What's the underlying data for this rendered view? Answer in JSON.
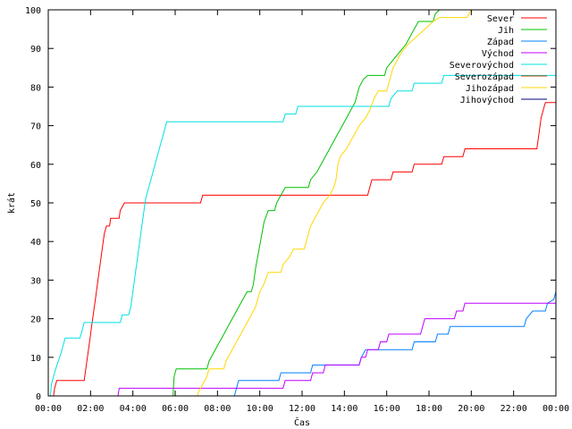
{
  "chart_data": {
    "type": "line",
    "title": "",
    "xlabel": "Čas",
    "ylabel": "krát",
    "xlim": [
      0,
      24
    ],
    "ylim": [
      0,
      100
    ],
    "grid": false,
    "legend_position": "top-right",
    "x_ticks": [
      {
        "value": 0,
        "label": "00:00"
      },
      {
        "value": 2,
        "label": "02:00"
      },
      {
        "value": 4,
        "label": "04:00"
      },
      {
        "value": 6,
        "label": "06:00"
      },
      {
        "value": 8,
        "label": "08:00"
      },
      {
        "value": 10,
        "label": "10:00"
      },
      {
        "value": 12,
        "label": "12:00"
      },
      {
        "value": 14,
        "label": "14:00"
      },
      {
        "value": 16,
        "label": "16:00"
      },
      {
        "value": 18,
        "label": "18:00"
      },
      {
        "value": 20,
        "label": "20:00"
      },
      {
        "value": 22,
        "label": "22:00"
      },
      {
        "value": 24,
        "label": "00:00"
      }
    ],
    "y_ticks": [
      0,
      10,
      20,
      30,
      40,
      50,
      60,
      70,
      80,
      90,
      100
    ],
    "series": [
      {
        "name": "Sever",
        "color": "#ff0000",
        "points": [
          [
            0.25,
            0
          ],
          [
            0.3,
            2
          ],
          [
            0.4,
            4
          ],
          [
            1.7,
            4
          ],
          [
            1.75,
            6
          ],
          [
            1.85,
            10
          ],
          [
            1.95,
            14
          ],
          [
            2.05,
            18
          ],
          [
            2.15,
            22
          ],
          [
            2.25,
            26
          ],
          [
            2.35,
            30
          ],
          [
            2.45,
            34
          ],
          [
            2.55,
            38
          ],
          [
            2.65,
            42
          ],
          [
            2.75,
            44
          ],
          [
            2.9,
            44
          ],
          [
            2.95,
            46
          ],
          [
            3.35,
            46
          ],
          [
            3.4,
            48
          ],
          [
            3.6,
            50
          ],
          [
            7.2,
            50
          ],
          [
            7.3,
            52
          ],
          [
            15.1,
            52
          ],
          [
            15.2,
            54
          ],
          [
            15.3,
            56
          ],
          [
            16.2,
            56
          ],
          [
            16.3,
            58
          ],
          [
            17.2,
            58
          ],
          [
            17.3,
            60
          ],
          [
            18.6,
            60
          ],
          [
            18.7,
            62
          ],
          [
            19.6,
            62
          ],
          [
            19.7,
            64
          ],
          [
            23.1,
            64
          ],
          [
            23.2,
            68
          ],
          [
            23.3,
            72
          ],
          [
            23.4,
            74
          ],
          [
            23.5,
            76
          ],
          [
            24,
            76
          ]
        ]
      },
      {
        "name": "Jih",
        "color": "#00c000",
        "points": [
          [
            5.9,
            0
          ],
          [
            5.95,
            5
          ],
          [
            6.05,
            7
          ],
          [
            7.5,
            7
          ],
          [
            7.6,
            9
          ],
          [
            7.8,
            11
          ],
          [
            8.0,
            13
          ],
          [
            8.2,
            15
          ],
          [
            8.4,
            17
          ],
          [
            8.6,
            19
          ],
          [
            8.8,
            21
          ],
          [
            9.0,
            23
          ],
          [
            9.2,
            25
          ],
          [
            9.4,
            27
          ],
          [
            9.6,
            27
          ],
          [
            9.7,
            29
          ],
          [
            9.8,
            33
          ],
          [
            10.0,
            39
          ],
          [
            10.2,
            45
          ],
          [
            10.4,
            48
          ],
          [
            10.7,
            48
          ],
          [
            10.8,
            50
          ],
          [
            11.0,
            52
          ],
          [
            11.2,
            54
          ],
          [
            12.3,
            54
          ],
          [
            12.4,
            56
          ],
          [
            12.7,
            58
          ],
          [
            12.9,
            60
          ],
          [
            13.1,
            62
          ],
          [
            13.3,
            64
          ],
          [
            13.5,
            66
          ],
          [
            13.7,
            68
          ],
          [
            13.9,
            70
          ],
          [
            14.1,
            72
          ],
          [
            14.3,
            74
          ],
          [
            14.5,
            76
          ],
          [
            14.7,
            80
          ],
          [
            14.9,
            82
          ],
          [
            15.1,
            83
          ],
          [
            15.9,
            83
          ],
          [
            16.0,
            85
          ],
          [
            16.3,
            87
          ],
          [
            16.6,
            89
          ],
          [
            16.9,
            91
          ],
          [
            17.1,
            93
          ],
          [
            17.3,
            95
          ],
          [
            17.5,
            97
          ],
          [
            18.2,
            97
          ],
          [
            18.3,
            99
          ],
          [
            18.5,
            100
          ]
        ]
      },
      {
        "name": "Západ",
        "color": "#0080ff",
        "points": [
          [
            8.8,
            0
          ],
          [
            8.9,
            2
          ],
          [
            9.0,
            4
          ],
          [
            10.9,
            4
          ],
          [
            11.0,
            6
          ],
          [
            12.4,
            6
          ],
          [
            12.5,
            8
          ],
          [
            14.7,
            8
          ],
          [
            14.8,
            10
          ],
          [
            15.0,
            12
          ],
          [
            17.2,
            12
          ],
          [
            17.3,
            14
          ],
          [
            18.3,
            14
          ],
          [
            18.4,
            16
          ],
          [
            18.9,
            16
          ],
          [
            19.0,
            18
          ],
          [
            22.5,
            18
          ],
          [
            22.6,
            20
          ],
          [
            22.9,
            22
          ],
          [
            23.5,
            22
          ],
          [
            23.6,
            24
          ],
          [
            23.9,
            25
          ],
          [
            24,
            27
          ]
        ]
      },
      {
        "name": "Východ",
        "color": "#c000ff",
        "points": [
          [
            3.3,
            0
          ],
          [
            3.35,
            2
          ],
          [
            11.1,
            2
          ],
          [
            11.2,
            4
          ],
          [
            12.4,
            4
          ],
          [
            12.5,
            6
          ],
          [
            13.0,
            6
          ],
          [
            13.1,
            8
          ],
          [
            14.7,
            8
          ],
          [
            14.8,
            10
          ],
          [
            15.0,
            10
          ],
          [
            15.1,
            12
          ],
          [
            15.6,
            12
          ],
          [
            15.7,
            14
          ],
          [
            16.0,
            14
          ],
          [
            16.1,
            16
          ],
          [
            17.6,
            16
          ],
          [
            17.7,
            18
          ],
          [
            17.8,
            20
          ],
          [
            19.2,
            20
          ],
          [
            19.3,
            22
          ],
          [
            19.6,
            22
          ],
          [
            19.7,
            24
          ],
          [
            24,
            24
          ]
        ]
      },
      {
        "name": "Severovýchod",
        "color": "#00e0e0",
        "points": [
          [
            0.1,
            0
          ],
          [
            0.15,
            3
          ],
          [
            0.25,
            5
          ],
          [
            0.35,
            7
          ],
          [
            0.6,
            11
          ],
          [
            0.7,
            13
          ],
          [
            0.8,
            15
          ],
          [
            1.5,
            15
          ],
          [
            1.6,
            17
          ],
          [
            1.7,
            19
          ],
          [
            3.4,
            19
          ],
          [
            3.5,
            21
          ],
          [
            3.8,
            21
          ],
          [
            3.9,
            23
          ],
          [
            4.0,
            27
          ],
          [
            4.1,
            31
          ],
          [
            4.2,
            35
          ],
          [
            4.3,
            39
          ],
          [
            4.4,
            43
          ],
          [
            4.5,
            47
          ],
          [
            4.6,
            51
          ],
          [
            4.7,
            53
          ],
          [
            4.8,
            55
          ],
          [
            4.9,
            57
          ],
          [
            5.0,
            59
          ],
          [
            5.1,
            61
          ],
          [
            5.2,
            63
          ],
          [
            5.3,
            65
          ],
          [
            5.4,
            67
          ],
          [
            5.5,
            69
          ],
          [
            5.6,
            71
          ],
          [
            11.1,
            71
          ],
          [
            11.2,
            73
          ],
          [
            11.7,
            73
          ],
          [
            11.8,
            75
          ],
          [
            16.1,
            75
          ],
          [
            16.2,
            77
          ],
          [
            16.5,
            79
          ],
          [
            17.2,
            79
          ],
          [
            17.3,
            81
          ],
          [
            18.6,
            81
          ],
          [
            18.7,
            83
          ],
          [
            24,
            83
          ]
        ]
      },
      {
        "name": "Severozápad",
        "color": "#c04000",
        "points": []
      },
      {
        "name": "Jihozápad",
        "color": "#ffd700",
        "points": [
          [
            7.05,
            0
          ],
          [
            7.1,
            1
          ],
          [
            7.3,
            3
          ],
          [
            7.5,
            5
          ],
          [
            7.6,
            7
          ],
          [
            8.3,
            7
          ],
          [
            8.4,
            9
          ],
          [
            8.6,
            11
          ],
          [
            8.8,
            13
          ],
          [
            9.0,
            15
          ],
          [
            9.2,
            17
          ],
          [
            9.4,
            19
          ],
          [
            9.6,
            21
          ],
          [
            9.8,
            23
          ],
          [
            9.9,
            25
          ],
          [
            10.0,
            27
          ],
          [
            10.2,
            29
          ],
          [
            10.4,
            32
          ],
          [
            11.0,
            32
          ],
          [
            11.1,
            34
          ],
          [
            11.4,
            36
          ],
          [
            11.6,
            38
          ],
          [
            12.1,
            38
          ],
          [
            12.2,
            40
          ],
          [
            12.4,
            44
          ],
          [
            12.6,
            46
          ],
          [
            12.8,
            48
          ],
          [
            13.0,
            50
          ],
          [
            13.3,
            52
          ],
          [
            13.5,
            54
          ],
          [
            13.6,
            56
          ],
          [
            13.7,
            60
          ],
          [
            13.8,
            62
          ],
          [
            14.1,
            64
          ],
          [
            14.3,
            66
          ],
          [
            14.5,
            68
          ],
          [
            14.7,
            70
          ],
          [
            15.0,
            72
          ],
          [
            15.2,
            74
          ],
          [
            15.4,
            77
          ],
          [
            15.6,
            79
          ],
          [
            16.0,
            79
          ],
          [
            16.1,
            81
          ],
          [
            16.3,
            85
          ],
          [
            16.5,
            87
          ],
          [
            16.7,
            89
          ],
          [
            17.0,
            91
          ],
          [
            17.4,
            93
          ],
          [
            17.8,
            95
          ],
          [
            18.2,
            97
          ],
          [
            18.5,
            98
          ],
          [
            19.8,
            98
          ],
          [
            20.0,
            100
          ]
        ]
      },
      {
        "name": "Jihovýchod",
        "color": "#000080",
        "points": []
      }
    ]
  }
}
